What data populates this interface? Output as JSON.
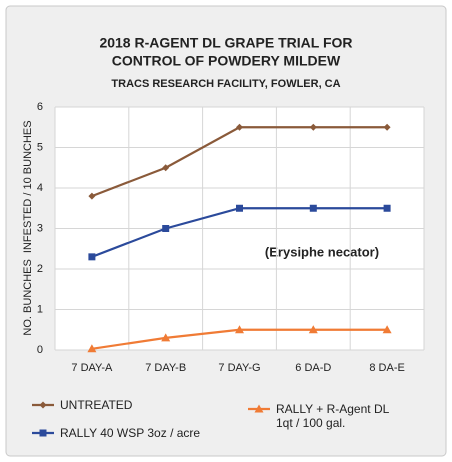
{
  "chart_data": {
    "type": "line",
    "title": [
      "2018 R-AGENT DL GRAPE TRIAL FOR",
      "CONTROL OF POWDERY MILDEW"
    ],
    "subtitle": "TRACS RESEARCH FACILITY, FOWLER, CA",
    "y_label": "NO. BUNCHES  INFESTED / 10 BUNCHES",
    "annotation": "(Erysiphe necator)",
    "categories": [
      "7 DAY-A",
      "7 DAY-B",
      "7 DAY-G",
      "6 DA-D",
      "8 DA-E"
    ],
    "series": [
      {
        "name": "UNTREATED",
        "color": "#8a5a3a",
        "marker": "diamond",
        "values": [
          3.8,
          4.5,
          5.5,
          5.5,
          5.5
        ]
      },
      {
        "name": "RALLY 40 WSP 3oz / acre",
        "color": "#2b4a9b",
        "marker": "square",
        "values": [
          2.3,
          3.0,
          3.5,
          3.5,
          3.5
        ]
      },
      {
        "name": "RALLY + R-Agent DL 1qt / 100 gal.",
        "color": "#f07b35",
        "marker": "triangle",
        "values": [
          0.03,
          0.3,
          0.5,
          0.5,
          0.5
        ]
      }
    ],
    "ylim": [
      0,
      6
    ],
    "yticks": [
      0,
      1,
      2,
      3,
      4,
      5,
      6
    ],
    "grid": true
  }
}
